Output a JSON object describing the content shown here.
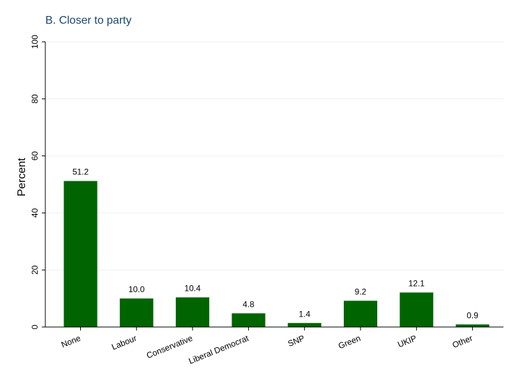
{
  "chart_data": {
    "type": "bar",
    "title": "B. Closer to party",
    "xlabel": "",
    "ylabel": "Percent",
    "ylim": [
      0,
      100
    ],
    "yticks": [
      0,
      20,
      40,
      60,
      80,
      100
    ],
    "grid": true,
    "categories": [
      "None",
      "Labour",
      "Conservative",
      "Liberal Democrat",
      "SNP",
      "Green",
      "UKIP",
      "Other"
    ],
    "values": [
      51.2,
      10.0,
      10.4,
      4.8,
      1.4,
      9.2,
      12.1,
      0.9
    ],
    "value_labels": [
      "51.2",
      "10.0",
      "10.4",
      "4.8",
      "1.4",
      "9.2",
      "12.1",
      "0.9"
    ],
    "colors": {
      "bar": "#006400",
      "grid": "#eaf2f3",
      "title": "#1a476f"
    }
  }
}
